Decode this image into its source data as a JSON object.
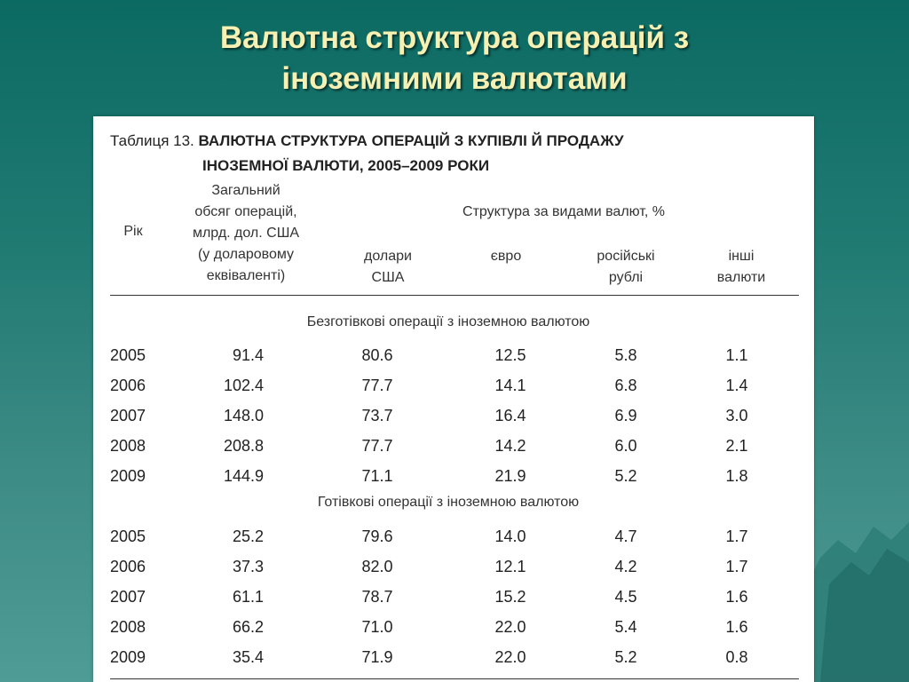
{
  "slide": {
    "title_line1": "Валютна структура операцій з",
    "title_line2": "іноземними валютами"
  },
  "table": {
    "caption_label": "Таблиця 13.",
    "caption_title_line1": "ВАЛЮТНА СТРУКТУРА ОПЕРАЦІЙ З КУПІВЛІ Й ПРОДАЖУ",
    "caption_title_line2": "ІНОЗЕМНОЇ ВАЛЮТИ, 2005–2009 РОКИ",
    "headers": {
      "year": "Рік",
      "total_lines": [
        "Загальний",
        "обсяг операцій,",
        "млрд. дол. США",
        "(у доларовому",
        "еквіваленті)"
      ],
      "structure": "Структура за видами валют, %",
      "usd_lines": [
        "долари",
        "США"
      ],
      "eur": "євро",
      "rub_lines": [
        "російські",
        "рублі"
      ],
      "other_lines": [
        "інші",
        "валюти"
      ]
    },
    "sections": [
      {
        "label": "Безготівкові операції з іноземною валютою",
        "rows": [
          [
            "2005",
            "91.4",
            "80.6",
            "12.5",
            "5.8",
            "1.1"
          ],
          [
            "2006",
            "102.4",
            "77.7",
            "14.1",
            "6.8",
            "1.4"
          ],
          [
            "2007",
            "148.0",
            "73.7",
            "16.4",
            "6.9",
            "3.0"
          ],
          [
            "2008",
            "208.8",
            "77.7",
            "14.2",
            "6.0",
            "2.1"
          ],
          [
            "2009",
            "144.9",
            "71.1",
            "21.9",
            "5.2",
            "1.8"
          ]
        ]
      },
      {
        "label": "Готівкові операції з іноземною валютою",
        "rows": [
          [
            "2005",
            "25.2",
            "79.6",
            "14.0",
            "4.7",
            "1.7"
          ],
          [
            "2006",
            "37.3",
            "82.0",
            "12.1",
            "4.2",
            "1.7"
          ],
          [
            "2007",
            "61.1",
            "78.7",
            "15.2",
            "4.5",
            "1.6"
          ],
          [
            "2008",
            "66.2",
            "71.0",
            "22.0",
            "5.4",
            "1.6"
          ],
          [
            "2009",
            "35.4",
            "71.9",
            "22.0",
            "5.2",
            "0.8"
          ]
        ]
      }
    ]
  },
  "theme": {
    "background": "#1f7a72",
    "title_color": "#f6f0b3"
  }
}
